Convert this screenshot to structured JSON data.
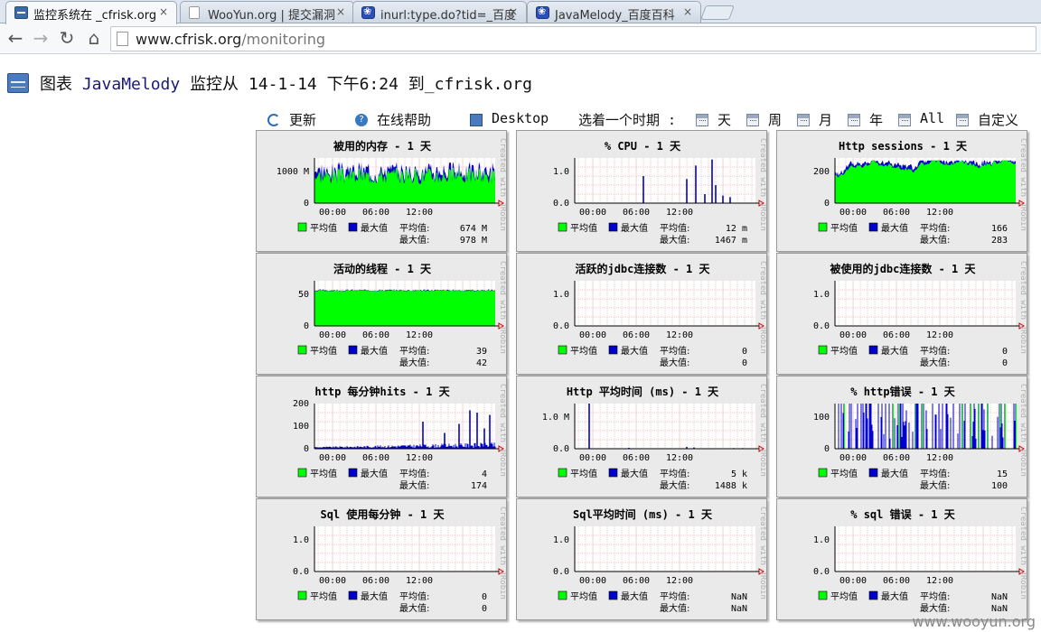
{
  "browser": {
    "tabs": [
      {
        "title": "监控系统在 _cfrisk.org",
        "icon": "javamelody-icon",
        "active": true
      },
      {
        "title": "WooYun.org | 提交漏洞",
        "icon": "page-icon",
        "active": false
      },
      {
        "title": "inurl:type.do?tid=_百度",
        "icon": "baidu-paw-icon",
        "active": false
      },
      {
        "title": "JavaMelody_百度百科",
        "icon": "baidu-paw-icon",
        "active": false
      }
    ],
    "close_glyph": "×",
    "address": {
      "host": "www.cfrisk.org",
      "path": "/monitoring"
    }
  },
  "header": {
    "prefix": "图表",
    "app_name": "JavaMelody",
    "suffix": "监控从 14-1-14 下午6:24 到_cfrisk.org"
  },
  "actions": {
    "refresh": "更新",
    "help": "在线帮助",
    "desktop": "Desktop",
    "period_label": "选着一个时期 :",
    "periods": [
      "天",
      "周",
      "月",
      "年",
      "All",
      "自定义"
    ]
  },
  "charts_common": {
    "x_ticks": [
      "00:00",
      "06:00",
      "12:00"
    ],
    "legend": {
      "avg": "平均值",
      "max": "最大值"
    },
    "stat_labels": {
      "avg": "平均值:",
      "max": "最大值:"
    },
    "watermark": "Created with JRobin",
    "colors": {
      "avg": "#00ff00",
      "max": "#0000cc",
      "grid": "#e8a0a0",
      "plot_bg": "#ffffff",
      "panel_bg": "#eaeaea"
    }
  },
  "charts": [
    {
      "title": "被用的内存 - 1 天",
      "y_ticks": [
        "1000 M",
        "0"
      ],
      "ymax": 1100,
      "avg": "674 M",
      "max": "978 M",
      "chart_data": {
        "type": "area",
        "pattern": "dense",
        "level": 674,
        "spread": 260,
        "peak": 1000,
        "bar_density": 1.0,
        "green_covers": true
      }
    },
    {
      "title": "% CPU - 1 天",
      "y_ticks": [
        "1.0",
        "0.0"
      ],
      "ymax": 1.5,
      "avg": "12 m",
      "max": "1467 m",
      "chart_data": {
        "type": "bar",
        "pattern": "spikes",
        "spikes": [
          [
            0.38,
            0.9
          ],
          [
            0.62,
            0.8
          ],
          [
            0.67,
            1.25
          ],
          [
            0.72,
            0.3
          ],
          [
            0.76,
            1.45
          ],
          [
            0.78,
            0.6
          ],
          [
            0.82,
            0.25
          ],
          [
            0.86,
            0.2
          ]
        ]
      }
    },
    {
      "title": "Http sessions - 1 天",
      "y_ticks": [
        "200",
        "0"
      ],
      "ymax": 300,
      "avg": "166",
      "max": "283",
      "chart_data": {
        "type": "area",
        "pattern": "smooth",
        "level": 166,
        "spread": 70,
        "peak": 283,
        "green_covers": true
      }
    },
    {
      "title": "活动的线程 - 1 天",
      "y_ticks": [
        "50",
        "0"
      ],
      "ymax": 50,
      "avg": "39",
      "max": "42",
      "chart_data": {
        "type": "area",
        "pattern": "flat",
        "level": 39,
        "spread": 2,
        "peak": 42,
        "green_covers": true
      }
    },
    {
      "title": "活跃的jdbc连接数 - 1 天",
      "y_ticks": [
        "1.0",
        "0.0"
      ],
      "ymax": 1.0,
      "avg": "0",
      "max": "0",
      "chart_data": {
        "type": "line",
        "pattern": "empty"
      }
    },
    {
      "title": "被使用的jdbc连接数 - 1 天",
      "y_ticks": [
        "1.0",
        "0.0"
      ],
      "ymax": 1.0,
      "avg": "0",
      "max": "0",
      "chart_data": {
        "type": "line",
        "pattern": "empty"
      }
    },
    {
      "title": "http 每分钟hits - 1 天",
      "y_ticks": [
        "200",
        "100",
        "0"
      ],
      "ymax": 200,
      "avg": "4",
      "max": "174",
      "chart_data": {
        "type": "bar",
        "pattern": "sparse",
        "level": 4,
        "spikes": [
          [
            0.6,
            120
          ],
          [
            0.72,
            70
          ],
          [
            0.8,
            110
          ],
          [
            0.86,
            170
          ],
          [
            0.9,
            160
          ],
          [
            0.94,
            90
          ],
          [
            0.97,
            150
          ]
        ]
      }
    },
    {
      "title": "Http 平均时间 (ms) - 1 天",
      "y_ticks": [
        "1.0 M",
        "0.0"
      ],
      "ymax": 1450000,
      "avg": "5 k",
      "max": "1488 k",
      "chart_data": {
        "type": "bar",
        "pattern": "spikes",
        "spikes": [
          [
            0.08,
            1488000
          ],
          [
            0.3,
            30000
          ],
          [
            0.62,
            60000
          ],
          [
            0.66,
            40000
          ],
          [
            0.88,
            20000
          ],
          [
            0.93,
            20000
          ]
        ]
      }
    },
    {
      "title": "% http错误 - 1 天",
      "y_ticks": [
        "100",
        "0"
      ],
      "ymax": 100,
      "avg": "15",
      "max": "100",
      "chart_data": {
        "type": "bar",
        "pattern": "errors",
        "level": 15,
        "peak": 100
      }
    },
    {
      "title": "Sql 使用每分钟 - 1 天",
      "y_ticks": [
        "1.0",
        "0.0"
      ],
      "ymax": 1.0,
      "avg": "0",
      "max": "0",
      "chart_data": {
        "type": "line",
        "pattern": "empty"
      }
    },
    {
      "title": "Sql平均时间 (ms) - 1 天",
      "y_ticks": [
        "1.0",
        "0.0"
      ],
      "ymax": 1.0,
      "avg": "NaN",
      "max": "NaN",
      "chart_data": {
        "type": "line",
        "pattern": "empty"
      }
    },
    {
      "title": "% sql 错误 - 1 天",
      "y_ticks": [
        "1.0",
        "0.0"
      ],
      "ymax": 1.0,
      "avg": "NaN",
      "max": "NaN",
      "chart_data": {
        "type": "line",
        "pattern": "empty"
      }
    }
  ],
  "watermark": "www.wooyun.org"
}
